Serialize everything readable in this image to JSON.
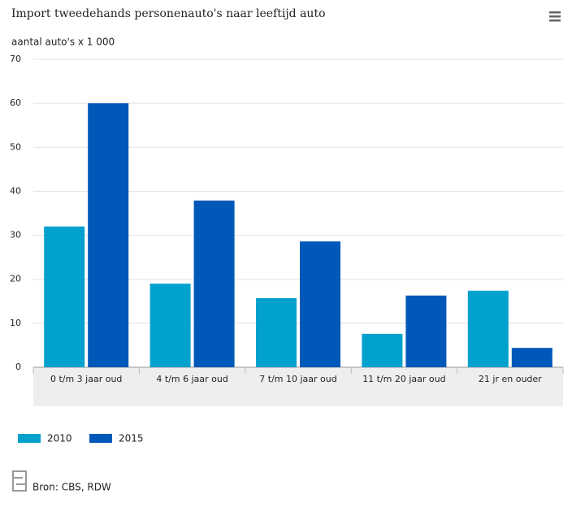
{
  "chart_data": {
    "type": "bar",
    "title": "Import tweedehands personenauto's naar leeftijd auto",
    "y_label": "aantal auto's x 1 000",
    "categories": [
      "0 t/m 3 jaar oud",
      "4 t/m 6 jaar oud",
      "7 t/m 10 jaar oud",
      "11 t/m 20 jaar oud",
      "21 jr en ouder"
    ],
    "series": [
      {
        "name": "2010",
        "color": "#00a1cd",
        "values": [
          32,
          19,
          15.7,
          7.6,
          17.4
        ]
      },
      {
        "name": "2015",
        "color": "#0058b8",
        "values": [
          60,
          37.9,
          28.6,
          16.3,
          4.4
        ]
      }
    ],
    "ylim": [
      0,
      70
    ],
    "yticks": [
      0,
      10,
      20,
      30,
      40,
      50,
      60,
      70
    ],
    "grid": true,
    "source": "Bron: CBS, RDW"
  }
}
